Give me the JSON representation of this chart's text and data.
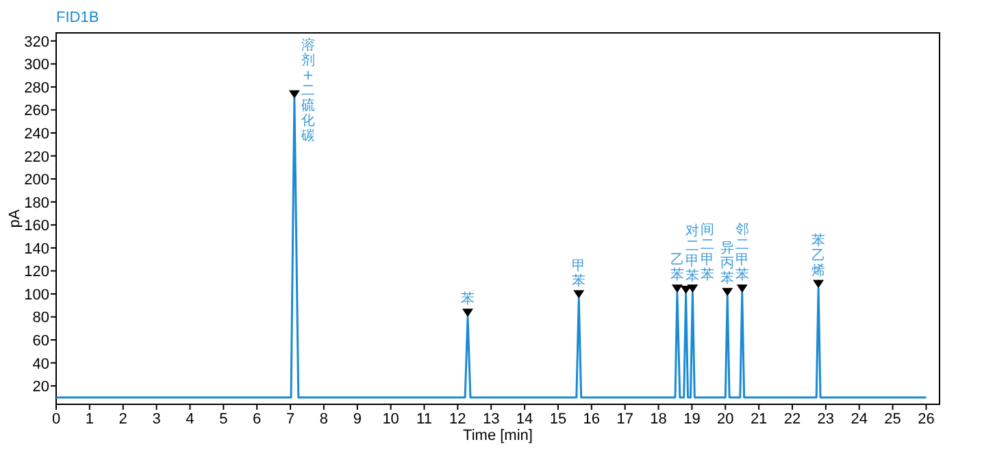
{
  "chart_data": {
    "type": "line",
    "title": "FID1B",
    "xlabel": "Time [min]",
    "ylabel": "pA",
    "xlim": [
      0,
      26.4
    ],
    "ylim": [
      4,
      327
    ],
    "xticks": [
      0,
      1,
      2,
      3,
      4,
      5,
      6,
      7,
      8,
      9,
      10,
      11,
      12,
      13,
      14,
      15,
      16,
      17,
      18,
      19,
      20,
      21,
      22,
      23,
      24,
      25,
      26
    ],
    "yticks": [
      20,
      40,
      60,
      80,
      100,
      120,
      140,
      160,
      180,
      200,
      220,
      240,
      260,
      280,
      300,
      320
    ],
    "grid": false,
    "series": [
      {
        "color": "#1a8ad4",
        "x": [
          0,
          7.02,
          7.12,
          7.24,
          12.22,
          12.3,
          12.38,
          15.55,
          15.62,
          15.69,
          18.5,
          18.56,
          18.64,
          18.76,
          18.82,
          18.88,
          18.96,
          19.02,
          19.08,
          20.0,
          20.06,
          20.12,
          20.44,
          20.5,
          20.56,
          22.72,
          22.78,
          22.84,
          26
        ],
        "values": [
          10,
          10,
          270,
          10,
          10,
          80,
          10,
          10,
          96,
          10,
          10,
          101,
          10,
          10,
          100,
          10,
          10,
          101,
          10,
          10,
          98,
          10,
          10,
          101,
          10,
          10,
          105,
          10,
          10
        ]
      }
    ],
    "annotations": [
      {
        "text": "溶剂+二硫化碳",
        "x": 7.12,
        "y": 270
      },
      {
        "text": "苯",
        "x": 12.3,
        "y": 80
      },
      {
        "text": "甲苯",
        "x": 15.62,
        "y": 96
      },
      {
        "text": "乙苯",
        "x": 18.56,
        "y": 101
      },
      {
        "text": "对二甲苯",
        "x": 18.82,
        "y": 100
      },
      {
        "text": "间二甲苯",
        "x": 19.02,
        "y": 101
      },
      {
        "text": "异丙苯",
        "x": 20.06,
        "y": 98
      },
      {
        "text": "邻二甲苯",
        "x": 20.5,
        "y": 101
      },
      {
        "text": "苯乙烯",
        "x": 22.78,
        "y": 105
      }
    ]
  }
}
